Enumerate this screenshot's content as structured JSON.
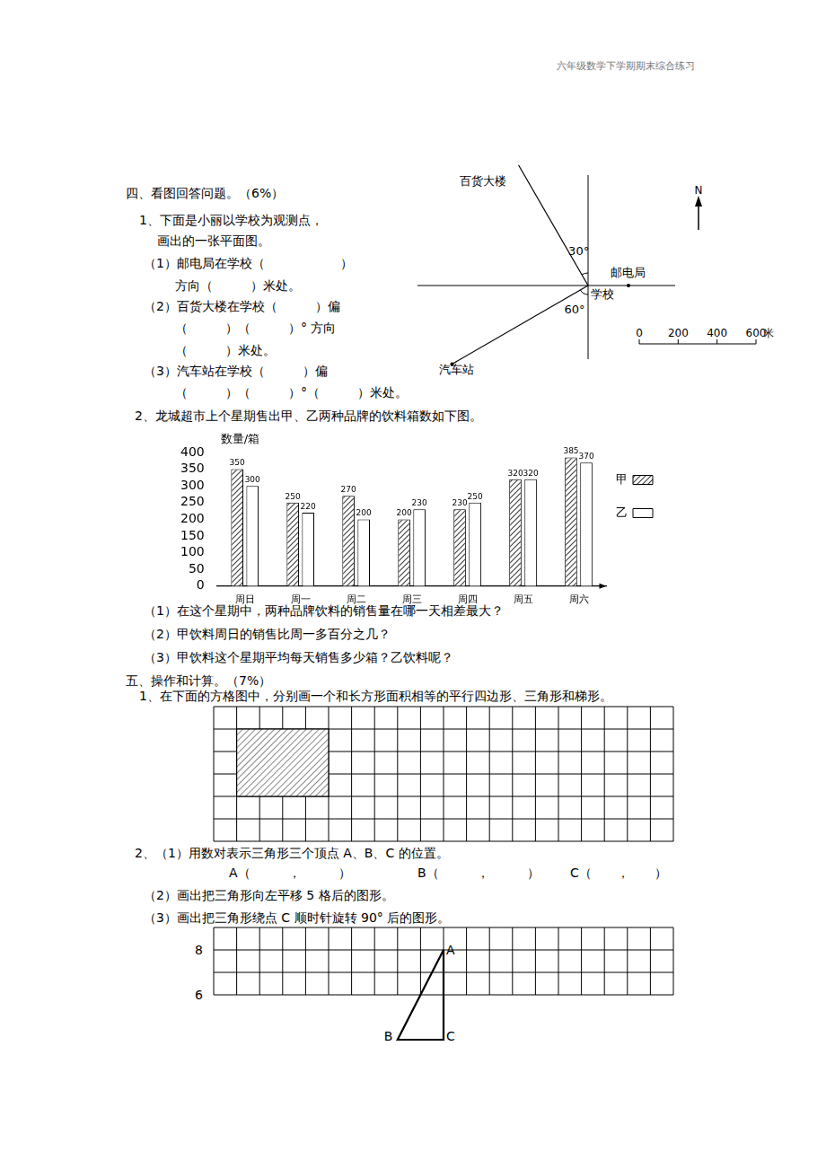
{
  "header": {
    "text": "六年级数学下学期期末综合练习"
  },
  "section4": {
    "title": "四、看图回答问题。（6%）",
    "q1": {
      "lines": [
        "1、下面是小丽以学校为观测点，",
        "画出的一张平面图。",
        "（1）邮电局在学校（　　　　　　）",
        "方向（　　　）米处。",
        "（2）百货大楼在学校（　　　）偏",
        "（　　　）（　　　）° 方向",
        "（　　　）米处。",
        "（3）汽车站在学校（　　　）偏",
        "（　　　）（　　　）°（　　　）米处。"
      ]
    },
    "map": {
      "places": {
        "store": "百货大楼",
        "post": "邮电局",
        "school": "学校",
        "bus": "汽车站"
      },
      "north": "N",
      "angles": [
        {
          "value": 30,
          "label": "30°"
        },
        {
          "value": 60,
          "label": "60°"
        }
      ],
      "scale": {
        "ticks": [
          0,
          200,
          400,
          600
        ],
        "unit": "米"
      }
    },
    "q2": {
      "intro": "2、龙城超市上个星期售出甲、乙两种品牌的饮料箱数如下图。",
      "questions": [
        "（1）在这个星期中，两种品牌饮料的销售量在哪一天相差最大？",
        "（2）甲饮料周日的销售比周一多百分之几？",
        "（3）甲饮料这个星期平均每天销售多少箱？乙饮料呢？"
      ]
    }
  },
  "chart_data": {
    "type": "bar",
    "y_label": "数量/箱",
    "categories": [
      "周日",
      "周一",
      "周二",
      "周三",
      "周四",
      "周五",
      "周六"
    ],
    "series": [
      {
        "name": "甲",
        "values": [
          350,
          250,
          270,
          200,
          230,
          320,
          385
        ]
      },
      {
        "name": "乙",
        "values": [
          300,
          220,
          200,
          230,
          250,
          320,
          370
        ]
      }
    ],
    "ylim": [
      0,
      400
    ],
    "yticks": [
      0,
      50,
      100,
      150,
      200,
      250,
      300,
      350,
      400
    ],
    "grid": false,
    "legend": "right",
    "data_labels": true
  },
  "section5": {
    "title": "五、操作和计算。（7%）",
    "q1": "1、在下面的方格图中，分别画一个和长方形面积相等的平行四边形、三角形和梯形。",
    "q2": {
      "line1": "2、（1）用数对表示三角形三个顶点 A、B、C 的位置。",
      "blanks": [
        "A（　　　，　　　）",
        "B（　　　，　　　）",
        "C（　　，　　）"
      ],
      "line2": "（2）画出把三角形向左平移 5 格后的图形。",
      "line3": "（3）画出把三角形绕点 C 顺时针旋转 90° 后的图形。",
      "y_labels": [
        8,
        6
      ],
      "vertices": [
        "A",
        "B",
        "C"
      ]
    }
  }
}
